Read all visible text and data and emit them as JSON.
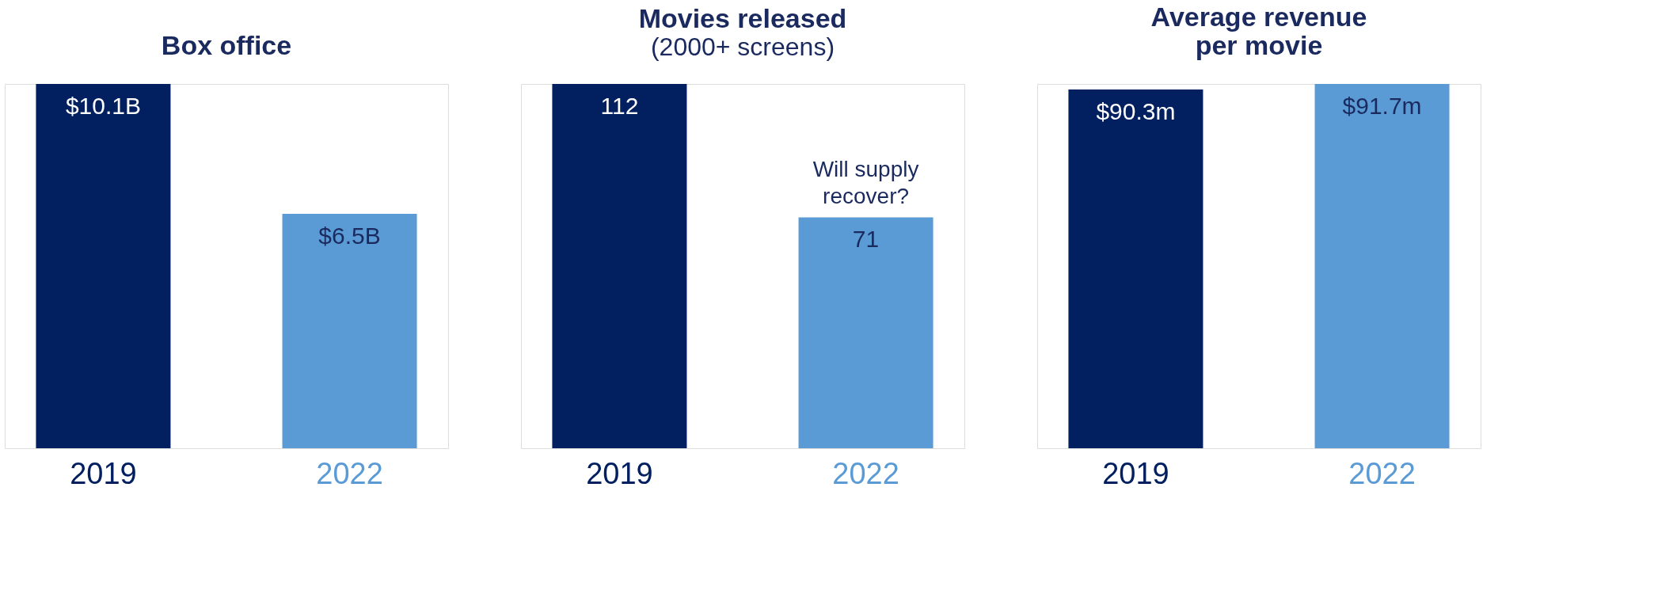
{
  "chart_data": [
    {
      "type": "bar",
      "title": "Box office",
      "categories": [
        "2019",
        "2022"
      ],
      "values": [
        10.1,
        6.5
      ],
      "colors": [
        "#022060",
        "#5b9bd5"
      ],
      "value_labels": [
        "$10.1B",
        "$6.5B"
      ]
    },
    {
      "type": "bar",
      "title": "Movies released",
      "subtitle": "(2000+ screens)",
      "categories": [
        "2019",
        "2022"
      ],
      "values": [
        112,
        71
      ],
      "colors": [
        "#022060",
        "#5b9bd5"
      ],
      "data_labels": true,
      "annotations": [
        {
          "text": "Will supply recover?",
          "x": "2022",
          "y": 71
        }
      ]
    },
    {
      "type": "bar",
      "title": "Average revenue\nper movie",
      "categories": [
        "2019",
        "2022"
      ],
      "values": [
        90.3,
        91.7
      ],
      "colors": [
        "#022060",
        "#5b9bd5"
      ],
      "value_labels": [
        "$90.3m",
        "$91.7m"
      ]
    }
  ]
}
